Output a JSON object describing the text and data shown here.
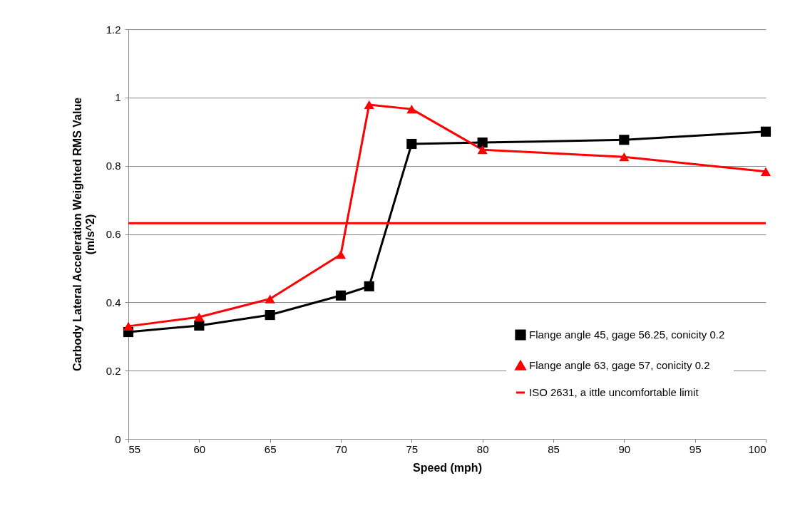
{
  "chart_data": {
    "type": "line",
    "xlabel": "Speed (mph)",
    "ylabel": "Carbody Lateral Acceleration Weighted RMS Value\n(m/s^2)",
    "xlim": [
      55,
      100
    ],
    "xticks": [
      55,
      60,
      65,
      70,
      75,
      80,
      85,
      90,
      95,
      100
    ],
    "ylim": [
      0,
      1.2
    ],
    "yticks": [
      0,
      0.2,
      0.4,
      0.6,
      0.8,
      1,
      1.2
    ],
    "grid": "y",
    "legend": "bottom right",
    "series": [
      {
        "name": "Flange angle 45, gage 56.25, conicity 0.2",
        "color": "#000000",
        "marker": "square",
        "x": [
          55,
          60,
          65,
          70,
          72,
          75,
          80,
          90,
          100
        ],
        "values": [
          0.313,
          0.332,
          0.363,
          0.42,
          0.447,
          0.864,
          0.868,
          0.876,
          0.9
        ]
      },
      {
        "name": "Flange angle 63, gage 57, conicity 0.2",
        "color": "#ff0000",
        "marker": "triangle",
        "x": [
          55,
          60,
          65,
          70,
          72,
          75,
          80,
          90,
          100
        ],
        "values": [
          0.33,
          0.357,
          0.41,
          0.54,
          0.979,
          0.966,
          0.847,
          0.826,
          0.783
        ]
      },
      {
        "name": "ISO 2631, a ittle uncomfortable limit",
        "color": "#ff0000",
        "marker": "none",
        "x": [
          55,
          100
        ],
        "values": [
          0.632,
          0.632
        ]
      }
    ]
  }
}
